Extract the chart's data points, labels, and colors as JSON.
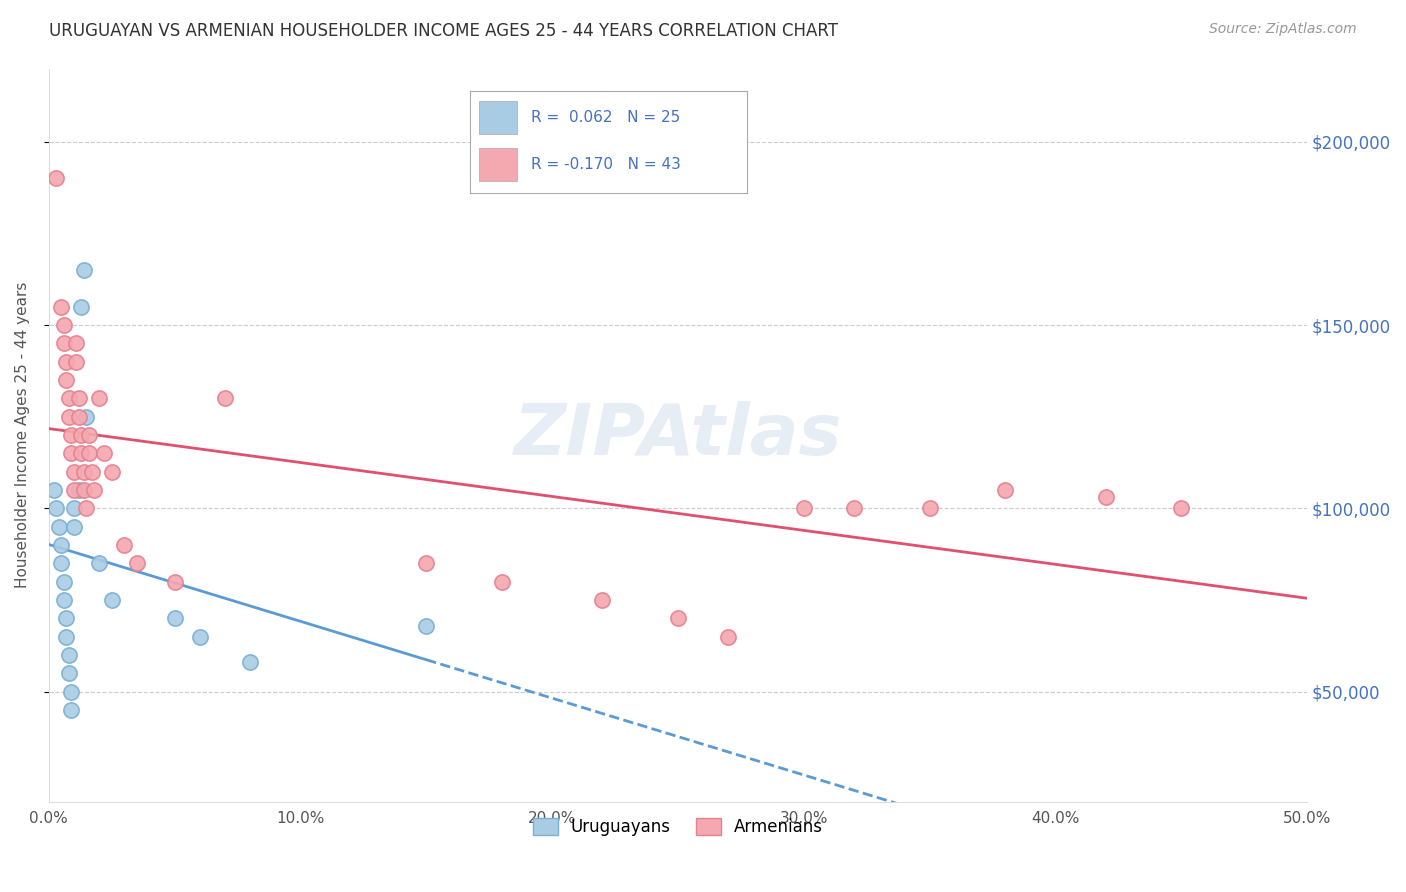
{
  "title": "URUGUAYAN VS ARMENIAN HOUSEHOLDER INCOME AGES 25 - 44 YEARS CORRELATION CHART",
  "source": "Source: ZipAtlas.com",
  "ylabel": "Householder Income Ages 25 - 44 years",
  "xlim": [
    0.0,
    0.5
  ],
  "ylim": [
    20000,
    220000
  ],
  "xtick_labels": [
    "0.0%",
    "10.0%",
    "20.0%",
    "30.0%",
    "40.0%",
    "50.0%"
  ],
  "xtick_values": [
    0.0,
    0.1,
    0.2,
    0.3,
    0.4,
    0.5
  ],
  "ytick_values": [
    50000,
    100000,
    150000,
    200000
  ],
  "ytick_labels": [
    "$50,000",
    "$100,000",
    "$150,000",
    "$200,000"
  ],
  "uruguayan_color": "#a8cce4",
  "armenian_color": "#f4a8b0",
  "legend_uruguayan_label": "Uruguayans",
  "legend_armenian_label": "Armenians",
  "R_uruguayan": 0.062,
  "N_uruguayan": 25,
  "R_armenian": -0.17,
  "N_armenian": 43,
  "watermark": "ZIPAtlas",
  "uruguayan_x": [
    0.002,
    0.003,
    0.004,
    0.005,
    0.005,
    0.006,
    0.006,
    0.007,
    0.007,
    0.008,
    0.008,
    0.009,
    0.009,
    0.01,
    0.01,
    0.012,
    0.013,
    0.014,
    0.015,
    0.02,
    0.025,
    0.05,
    0.06,
    0.08,
    0.15
  ],
  "uruguayan_y": [
    105000,
    100000,
    95000,
    90000,
    85000,
    80000,
    75000,
    70000,
    65000,
    60000,
    55000,
    50000,
    45000,
    100000,
    95000,
    105000,
    155000,
    165000,
    125000,
    85000,
    75000,
    70000,
    65000,
    58000,
    68000
  ],
  "armenian_x": [
    0.003,
    0.005,
    0.006,
    0.006,
    0.007,
    0.007,
    0.008,
    0.008,
    0.009,
    0.009,
    0.01,
    0.01,
    0.011,
    0.011,
    0.012,
    0.012,
    0.013,
    0.013,
    0.014,
    0.014,
    0.015,
    0.016,
    0.016,
    0.017,
    0.018,
    0.02,
    0.022,
    0.025,
    0.03,
    0.035,
    0.05,
    0.07,
    0.15,
    0.18,
    0.22,
    0.25,
    0.27,
    0.3,
    0.32,
    0.35,
    0.38,
    0.42,
    0.45
  ],
  "armenian_y": [
    190000,
    155000,
    150000,
    145000,
    140000,
    135000,
    130000,
    125000,
    120000,
    115000,
    110000,
    105000,
    140000,
    145000,
    130000,
    125000,
    120000,
    115000,
    110000,
    105000,
    100000,
    120000,
    115000,
    110000,
    105000,
    130000,
    115000,
    110000,
    90000,
    85000,
    80000,
    130000,
    85000,
    80000,
    75000,
    70000,
    65000,
    100000,
    100000,
    100000,
    105000,
    103000,
    100000
  ]
}
